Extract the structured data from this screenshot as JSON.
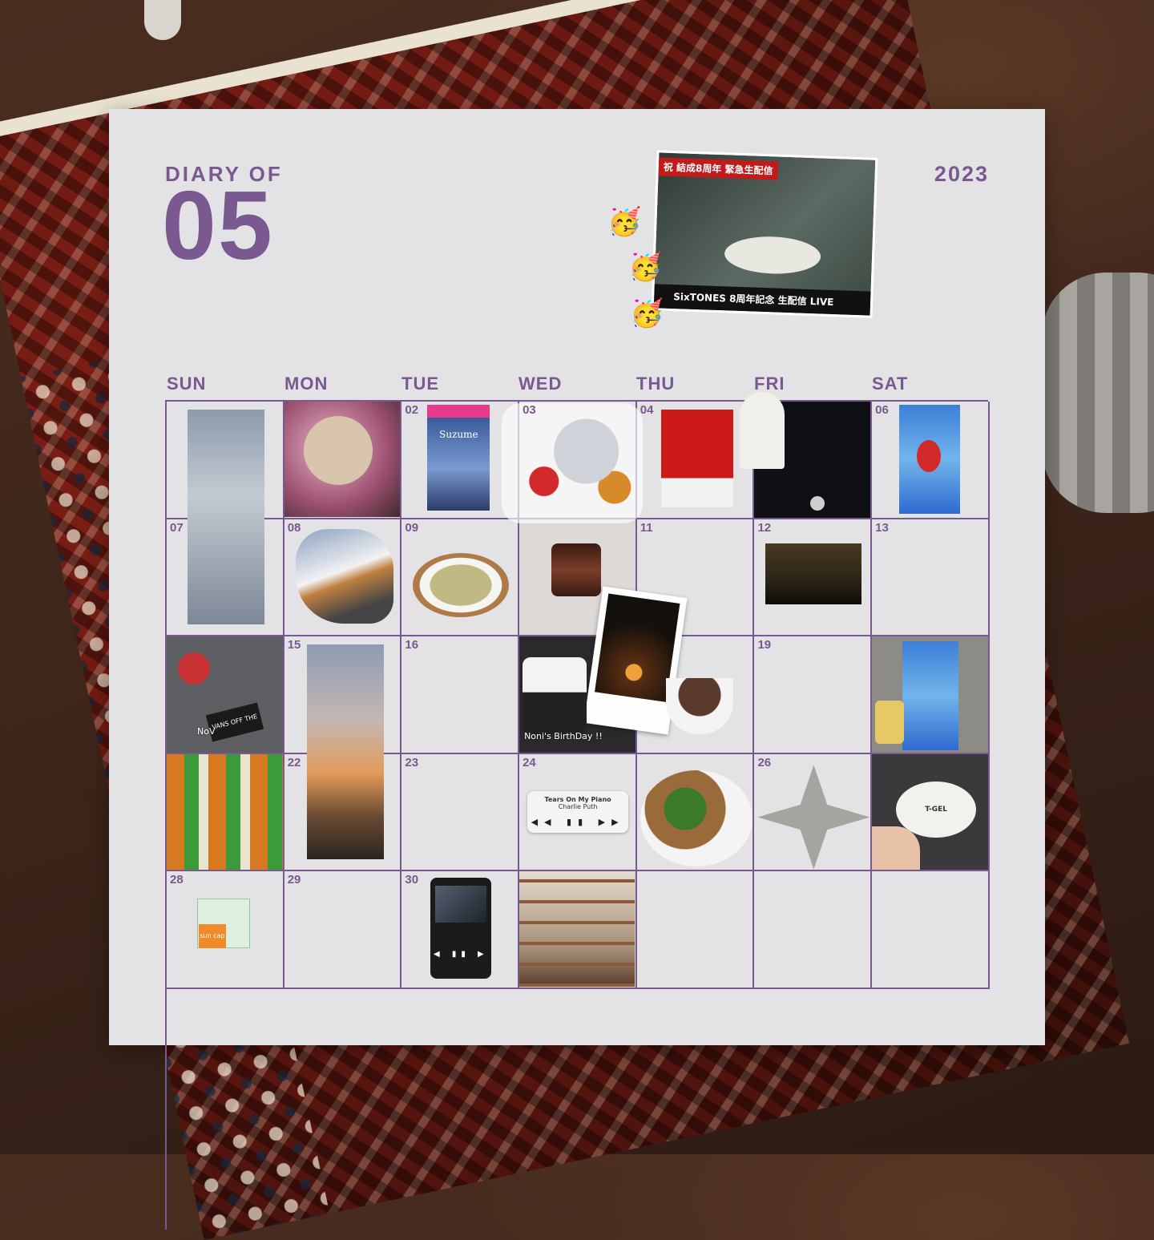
{
  "header": {
    "small_title": "DIARY OF",
    "month": "05",
    "year": "2023",
    "live_tag": "祝 結成8周年 緊急生配信",
    "live_caption": "SixTONES 8周年記念 生配信 LIVE",
    "emoji": "🥳"
  },
  "weekdays": [
    "SUN",
    "MON",
    "TUE",
    "WED",
    "THU",
    "FRI",
    "SAT"
  ],
  "days": {
    "d02": "02",
    "d03": "03",
    "d04": "04",
    "d06": "06",
    "d07": "07",
    "d08": "08",
    "d09": "09",
    "d11": "11",
    "d12": "12",
    "d13": "13",
    "d15": "15",
    "d16": "16",
    "d19": "19",
    "d22": "22",
    "d23": "23",
    "d24": "24",
    "d26": "26",
    "d28": "28",
    "d29": "29",
    "d30": "30"
  },
  "media": {
    "suzume_title": "Suzume",
    "music_title": "Tears On My Piano",
    "music_artist": "Charlie Puth",
    "music_controls": "◀◀ ▮▮ ▶▶",
    "birthday_note": "Noni's BirthDay !!",
    "note_nov": "NoV",
    "sticker_note": "VANS OFF THE WALL",
    "nail_label": "T-GEL",
    "card_label": "sun cap",
    "phone_controls": "◀ ▮▮ ▶"
  }
}
